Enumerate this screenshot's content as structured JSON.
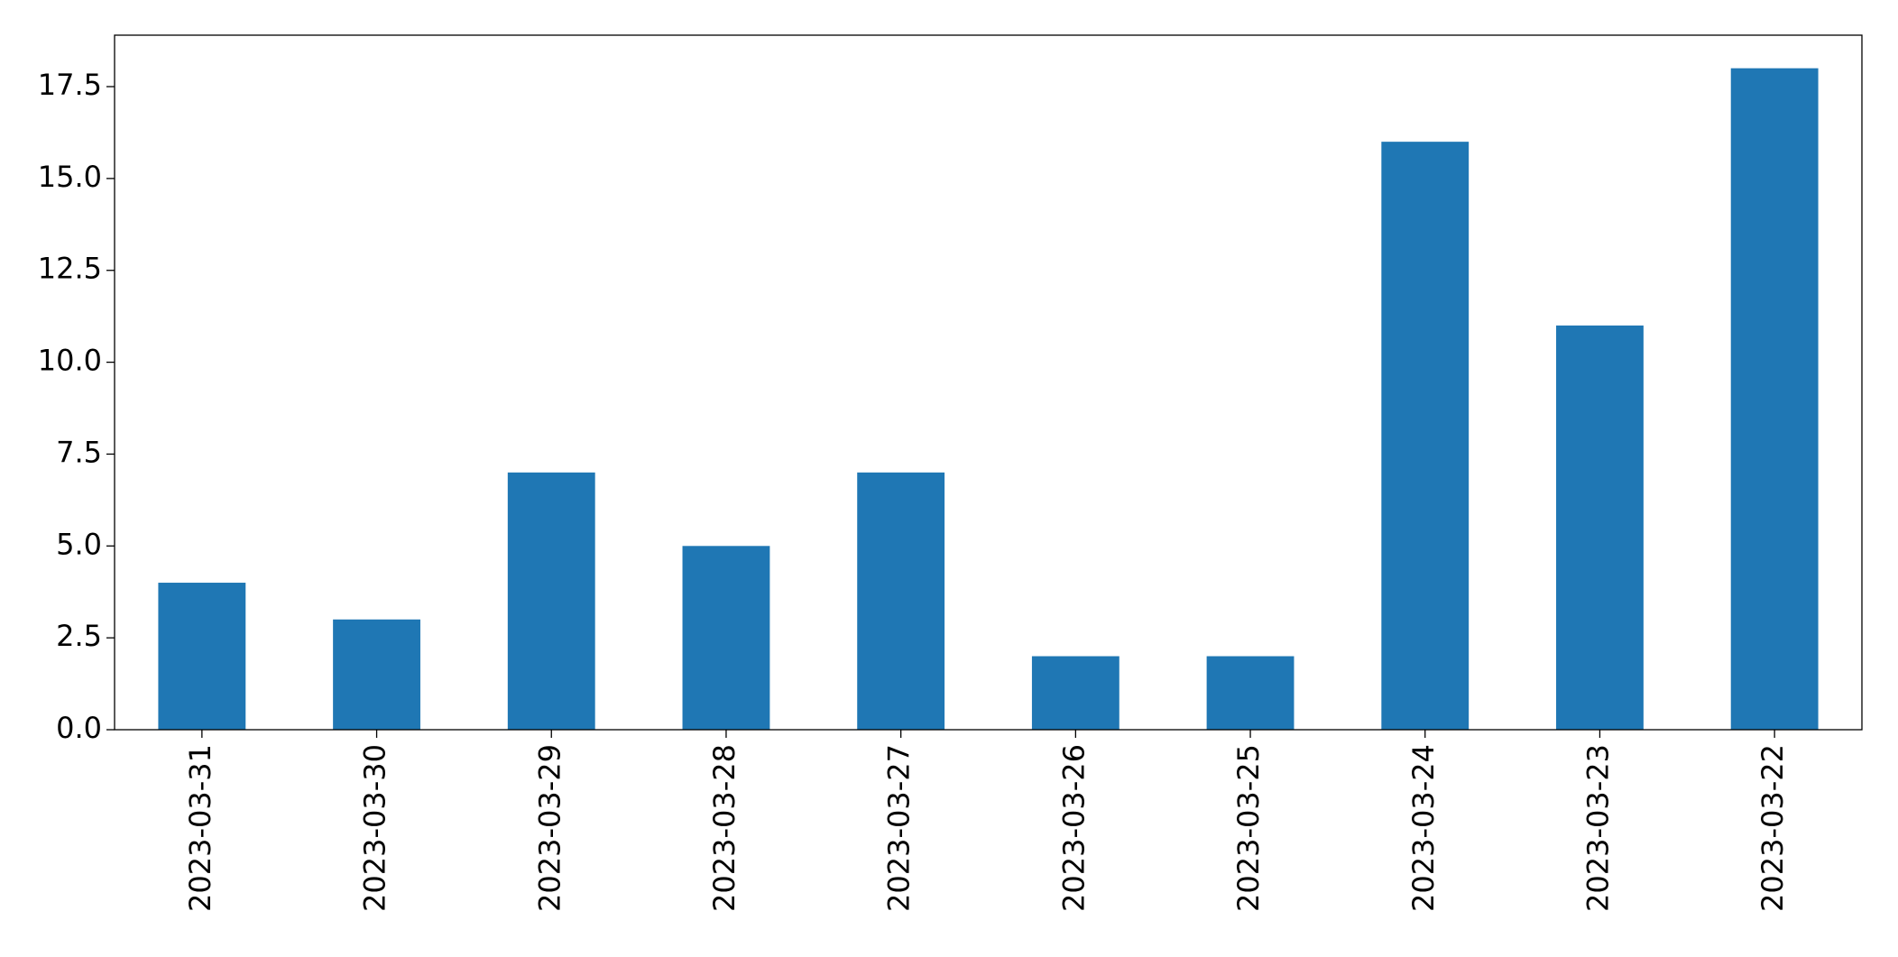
{
  "chart_data": {
    "type": "bar",
    "categories": [
      "2023-03-31",
      "2023-03-30",
      "2023-03-29",
      "2023-03-28",
      "2023-03-27",
      "2023-03-26",
      "2023-03-25",
      "2023-03-24",
      "2023-03-23",
      "2023-03-22"
    ],
    "values": [
      4,
      3,
      7,
      5,
      7,
      2,
      2,
      16,
      11,
      18
    ],
    "color": "#1f77b4",
    "ylim": [
      0,
      18.9
    ],
    "yticks": [
      {
        "value": 0,
        "label": "0.0"
      },
      2.5,
      {
        "value": 5,
        "label": "5.0"
      },
      7.5,
      {
        "value": 10,
        "label": "10.0"
      },
      12.5,
      {
        "value": 15,
        "label": "15.0"
      },
      17.5
    ],
    "grid": false
  }
}
